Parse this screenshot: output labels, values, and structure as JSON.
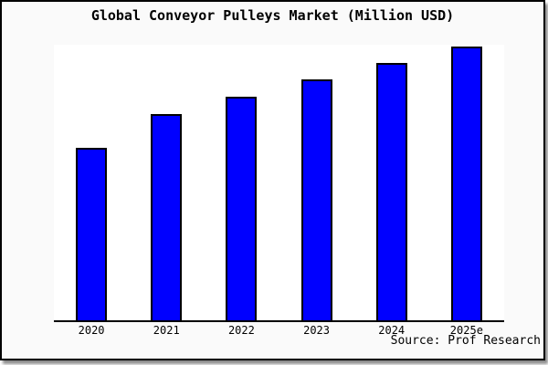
{
  "chart_data": {
    "type": "bar",
    "title": "Global Conveyor Pulleys Market (Million USD)",
    "xlabel": "",
    "ylabel": "",
    "y_axis": "hidden (no ticks or gridlines shown)",
    "legend": "none",
    "categories": [
      "2020",
      "2021",
      "2022",
      "2023",
      "2024",
      "2025e"
    ],
    "values_relative_to_max_pct": [
      63.0,
      75.3,
      81.7,
      88.0,
      94.0,
      100.0
    ],
    "bar_heights_pct_of_plot": [
      62.6,
      74.8,
      81.1,
      87.4,
      93.4,
      99.3
    ],
    "colors": {
      "bar_fill": "#0000ff",
      "bar_border": "#000000",
      "axis_line": "#000000",
      "plot_background": "#ffffff",
      "canvas_background": "#fafafa",
      "frame_border": "#000000"
    }
  },
  "footer": {
    "source": "Source: Prof Research"
  }
}
